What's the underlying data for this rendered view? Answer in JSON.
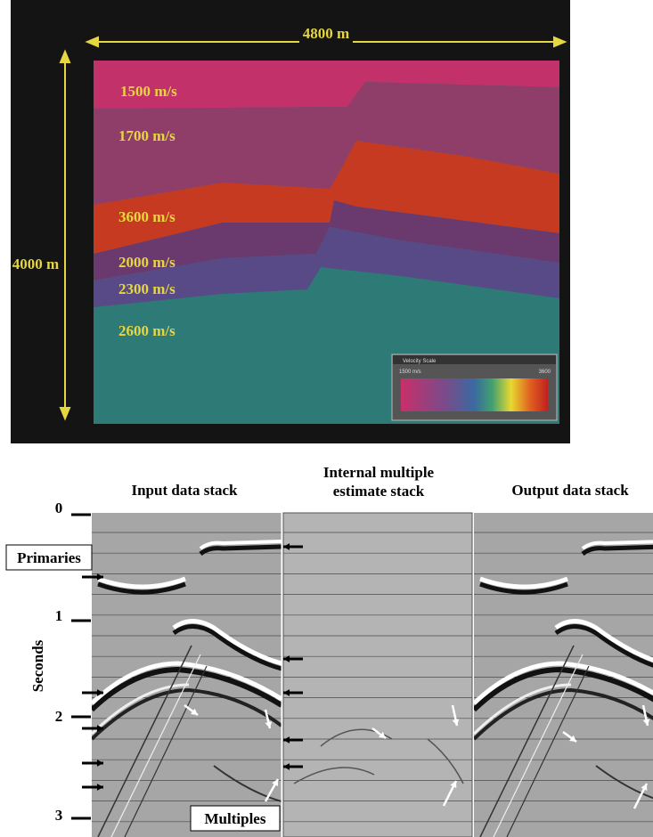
{
  "model": {
    "width_label": "4800 m",
    "depth_label": "4000 m",
    "layers": [
      "1500 m/s",
      "1700 m/s",
      "3600 m/s",
      "2000 m/s",
      "2300 m/s",
      "2600 m/s"
    ],
    "colorbar": {
      "title": "Velocity Scale",
      "min_label": "1500 m/s",
      "max_label": "3600"
    }
  },
  "panels": [
    {
      "title": [
        "Input data stack"
      ]
    },
    {
      "title": [
        "Internal multiple",
        "estimate stack"
      ]
    },
    {
      "title": [
        "Output data stack"
      ]
    }
  ],
  "time_axis": {
    "label": "Seconds",
    "ticks": [
      0,
      1,
      2,
      3
    ]
  },
  "annotations": {
    "primaries": "Primaries",
    "multiples": "Multiples"
  }
}
